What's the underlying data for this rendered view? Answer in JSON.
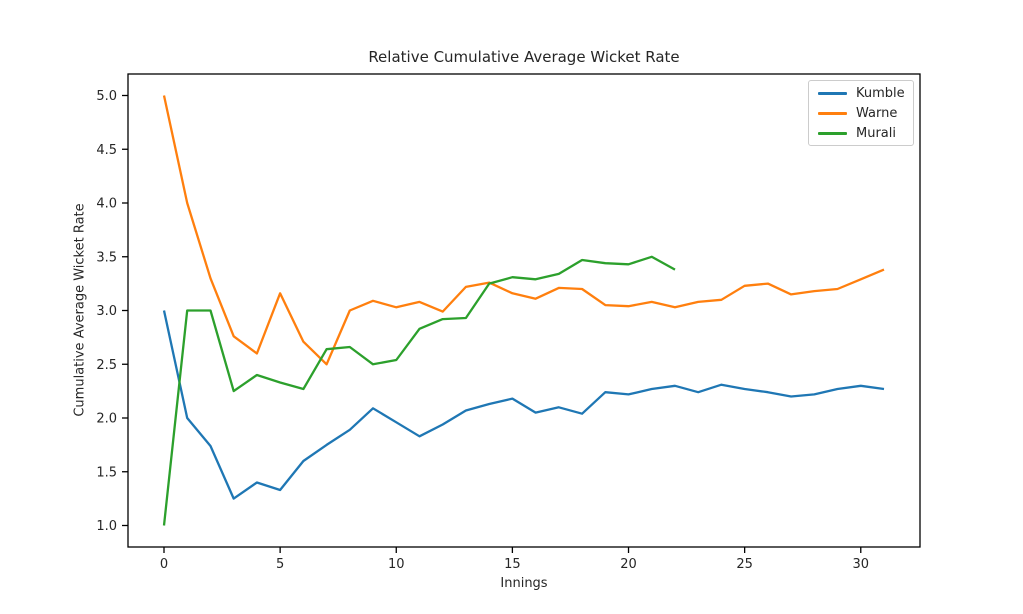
{
  "figure": {
    "background": "#ffffff",
    "text_color": "#262626",
    "axis_color": "#000000"
  },
  "chart_data": {
    "type": "line",
    "title": "Relative Cumulative Average Wicket Rate",
    "xlabel": "Innings",
    "ylabel": "Cumulative Average Wicket Rate",
    "xlim": [
      -1.55,
      32.55
    ],
    "ylim": [
      0.8,
      5.2
    ],
    "grid": false,
    "legend_position": "upper right",
    "x_tick_values": [
      0,
      5,
      10,
      15,
      20,
      25,
      30
    ],
    "x_tick_labels": [
      "0",
      "5",
      "10",
      "15",
      "20",
      "25",
      "30"
    ],
    "y_tick_values": [
      1.0,
      1.5,
      2.0,
      2.5,
      3.0,
      3.5,
      4.0,
      4.5,
      5.0
    ],
    "y_tick_labels": [
      "1.0",
      "1.5",
      "2.0",
      "2.5",
      "3.0",
      "3.5",
      "4.0",
      "4.5",
      "5.0"
    ],
    "series": [
      {
        "name": "Kumble",
        "color": "#1f77b4",
        "x": [
          0,
          1,
          2,
          3,
          4,
          5,
          6,
          7,
          8,
          9,
          10,
          11,
          12,
          13,
          14,
          15,
          16,
          17,
          18,
          19,
          20,
          21,
          22,
          23,
          24,
          25,
          26,
          27,
          28,
          29,
          30,
          31
        ],
        "values": [
          3.0,
          2.0,
          1.74,
          1.25,
          1.4,
          1.33,
          1.6,
          1.75,
          1.89,
          2.09,
          1.96,
          1.83,
          1.94,
          2.07,
          2.13,
          2.18,
          2.05,
          2.1,
          2.04,
          2.24,
          2.22,
          2.27,
          2.3,
          2.24,
          2.31,
          2.27,
          2.24,
          2.2,
          2.22,
          2.27,
          2.3,
          2.27
        ]
      },
      {
        "name": "Warne",
        "color": "#ff7f0e",
        "x": [
          0,
          1,
          2,
          3,
          4,
          5,
          6,
          7,
          8,
          9,
          10,
          11,
          12,
          13,
          14,
          15,
          16,
          17,
          18,
          19,
          20,
          21,
          22,
          23,
          24,
          25,
          26,
          27,
          28,
          29,
          30,
          31
        ],
        "values": [
          5.0,
          4.0,
          3.3,
          2.76,
          2.6,
          3.16,
          2.71,
          2.5,
          3.0,
          3.09,
          3.03,
          3.08,
          2.99,
          3.22,
          3.26,
          3.16,
          3.11,
          3.21,
          3.2,
          3.05,
          3.04,
          3.08,
          3.03,
          3.08,
          3.1,
          3.23,
          3.25,
          3.15,
          3.18,
          3.2,
          3.29,
          3.38
        ]
      },
      {
        "name": "Murali",
        "color": "#2ca02c",
        "x": [
          0,
          1,
          2,
          3,
          4,
          5,
          6,
          7,
          8,
          9,
          10,
          11,
          12,
          13,
          14,
          15,
          16,
          17,
          18,
          19,
          20,
          21,
          22
        ],
        "values": [
          1.0,
          3.0,
          3.0,
          2.25,
          2.4,
          2.33,
          2.27,
          2.64,
          2.66,
          2.5,
          2.54,
          2.83,
          2.92,
          2.93,
          3.25,
          3.31,
          3.29,
          3.34,
          3.47,
          3.44,
          3.43,
          3.5,
          3.38
        ]
      }
    ]
  }
}
